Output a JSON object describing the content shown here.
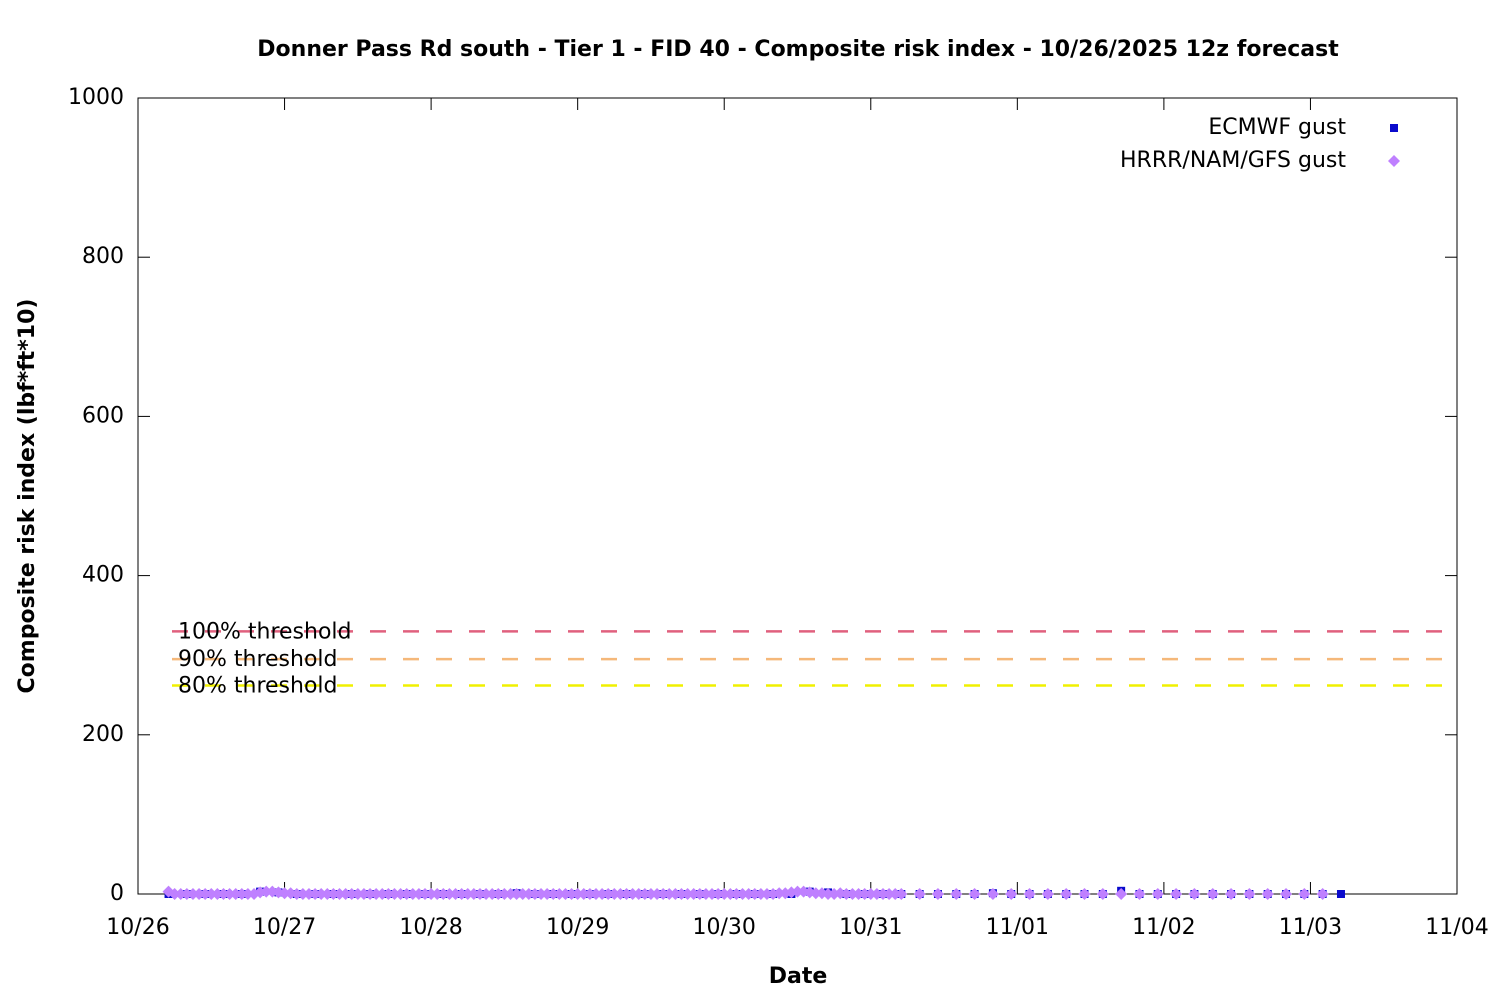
{
  "chart_data": {
    "type": "scatter",
    "title": "Donner Pass Rd south - Tier 1 - FID 40 - Composite risk index - 10/26/2025 12z forecast",
    "x_label": "Date",
    "y_label": "Composite risk index (lbf*ft*10)",
    "xlim": [
      0,
      216
    ],
    "xticks": [
      {
        "value": 0,
        "label": "10/26"
      },
      {
        "value": 24,
        "label": "10/27"
      },
      {
        "value": 48,
        "label": "10/28"
      },
      {
        "value": 72,
        "label": "10/29"
      },
      {
        "value": 96,
        "label": "10/30"
      },
      {
        "value": 120,
        "label": "10/31"
      },
      {
        "value": 144,
        "label": "11/01"
      },
      {
        "value": 168,
        "label": "11/02"
      },
      {
        "value": 192,
        "label": "11/03"
      },
      {
        "value": 216,
        "label": "11/04"
      }
    ],
    "ylim": [
      0,
      1000
    ],
    "yticks": [
      0,
      200,
      400,
      600,
      800,
      1000
    ],
    "legend": "top right",
    "thresholds": [
      {
        "label": "100% threshold",
        "value": 330,
        "color": "#e0607e"
      },
      {
        "label": "90% threshold",
        "value": 295,
        "color": "#f5b87a"
      },
      {
        "label": "80% threshold",
        "value": 262,
        "color": "#f0f000"
      }
    ],
    "series": [
      {
        "name": "ECMWF gust",
        "color": "#0a0acc",
        "marker": "square",
        "x": [
          5,
          8,
          11,
          14,
          17,
          20,
          23,
          26,
          29,
          32,
          35,
          38,
          41,
          44,
          47,
          50,
          53,
          56,
          59,
          62,
          65,
          68,
          71,
          74,
          77,
          80,
          83,
          86,
          89,
          92,
          95,
          98,
          101,
          104,
          107,
          110,
          113,
          116,
          119,
          122,
          125,
          128,
          131,
          134,
          137,
          140,
          143,
          146,
          149,
          152,
          155,
          158,
          161,
          164,
          167,
          170,
          173,
          176,
          179,
          182,
          185,
          188,
          191,
          194,
          197
        ],
        "values": [
          0,
          0,
          0,
          0,
          0,
          3,
          2,
          0,
          0,
          0,
          0,
          0,
          0,
          0,
          0,
          0,
          0,
          0,
          0,
          1,
          0,
          0,
          0,
          0,
          0,
          0,
          0,
          0,
          0,
          0,
          0,
          0,
          0,
          0,
          0,
          3,
          2,
          0,
          0,
          0,
          0,
          0,
          0,
          0,
          0,
          1,
          0,
          0,
          0,
          0,
          0,
          0,
          4,
          0,
          0,
          0,
          0,
          0,
          0,
          0,
          0,
          0,
          0,
          0,
          0
        ]
      },
      {
        "name": "HRRR/NAM/GFS gust",
        "color": "#bf80ff",
        "marker": "diamond",
        "x": [
          5,
          6,
          7,
          8,
          9,
          10,
          11,
          12,
          13,
          14,
          15,
          16,
          17,
          18,
          19,
          20,
          21,
          22,
          23,
          24,
          25,
          26,
          27,
          28,
          29,
          30,
          31,
          32,
          33,
          34,
          35,
          36,
          37,
          38,
          39,
          40,
          41,
          42,
          43,
          44,
          45,
          46,
          47,
          48,
          49,
          50,
          51,
          52,
          53,
          54,
          55,
          56,
          57,
          58,
          59,
          60,
          61,
          62,
          63,
          64,
          65,
          66,
          67,
          68,
          69,
          70,
          71,
          72,
          73,
          74,
          75,
          76,
          77,
          78,
          79,
          80,
          81,
          82,
          83,
          84,
          85,
          86,
          87,
          88,
          89,
          90,
          91,
          92,
          93,
          94,
          95,
          96,
          97,
          98,
          99,
          100,
          101,
          102,
          103,
          104,
          105,
          106,
          107,
          108,
          109,
          110,
          111,
          112,
          113,
          114,
          115,
          116,
          117,
          118,
          119,
          120,
          121,
          122,
          123,
          124,
          125,
          128,
          131,
          134,
          137,
          140,
          143,
          146,
          149,
          152,
          155,
          158,
          161,
          164,
          167,
          170,
          173,
          176,
          179,
          182,
          185,
          188,
          191,
          194
        ],
        "values": [
          3,
          0,
          0,
          0,
          0,
          0,
          0,
          0,
          0,
          0,
          0,
          0,
          0,
          0,
          0,
          2,
          3,
          3,
          2,
          1,
          1,
          0,
          0,
          0,
          0,
          0,
          0,
          0,
          0,
          0,
          0,
          0,
          0,
          0,
          0,
          0,
          0,
          0,
          0,
          0,
          0,
          0,
          0,
          0,
          0,
          0,
          0,
          0,
          0,
          0,
          0,
          0,
          0,
          0,
          0,
          0,
          0,
          0,
          0,
          0,
          0,
          0,
          0,
          0,
          0,
          0,
          0,
          0,
          0,
          0,
          0,
          0,
          0,
          0,
          0,
          0,
          0,
          0,
          0,
          0,
          0,
          0,
          0,
          0,
          0,
          0,
          0,
          0,
          0,
          0,
          0,
          0,
          0,
          0,
          0,
          0,
          0,
          0,
          0,
          0,
          1,
          1,
          2,
          3,
          3,
          2,
          1,
          1,
          0,
          0,
          1,
          0,
          0,
          0,
          0,
          0,
          0,
          0,
          0,
          0,
          0,
          0,
          0,
          0,
          0,
          0,
          0,
          0,
          0,
          0,
          0,
          0,
          0,
          0,
          0,
          0,
          0,
          0,
          0,
          0,
          0,
          0,
          0,
          0
        ]
      }
    ]
  }
}
